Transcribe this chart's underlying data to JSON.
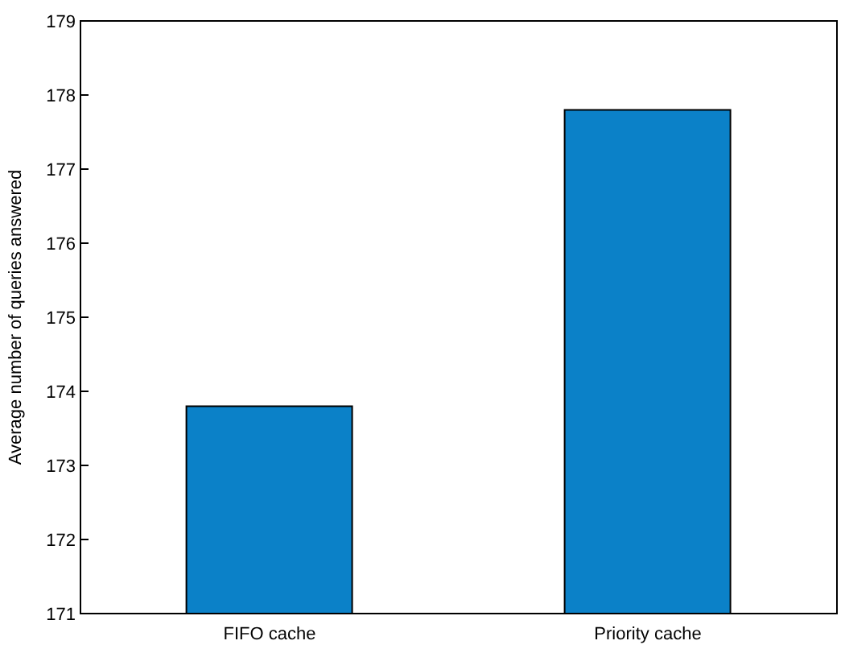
{
  "chart_data": {
    "type": "bar",
    "ylabel": "Average number of queries answered",
    "categories": [
      "FIFO cache",
      "Priority cache"
    ],
    "values": [
      173.8,
      177.8
    ],
    "color": "#0b81c8",
    "ylim": [
      171,
      179
    ],
    "yticks": [
      171,
      172,
      173,
      174,
      175,
      176,
      177,
      178,
      179
    ],
    "grid": false
  }
}
